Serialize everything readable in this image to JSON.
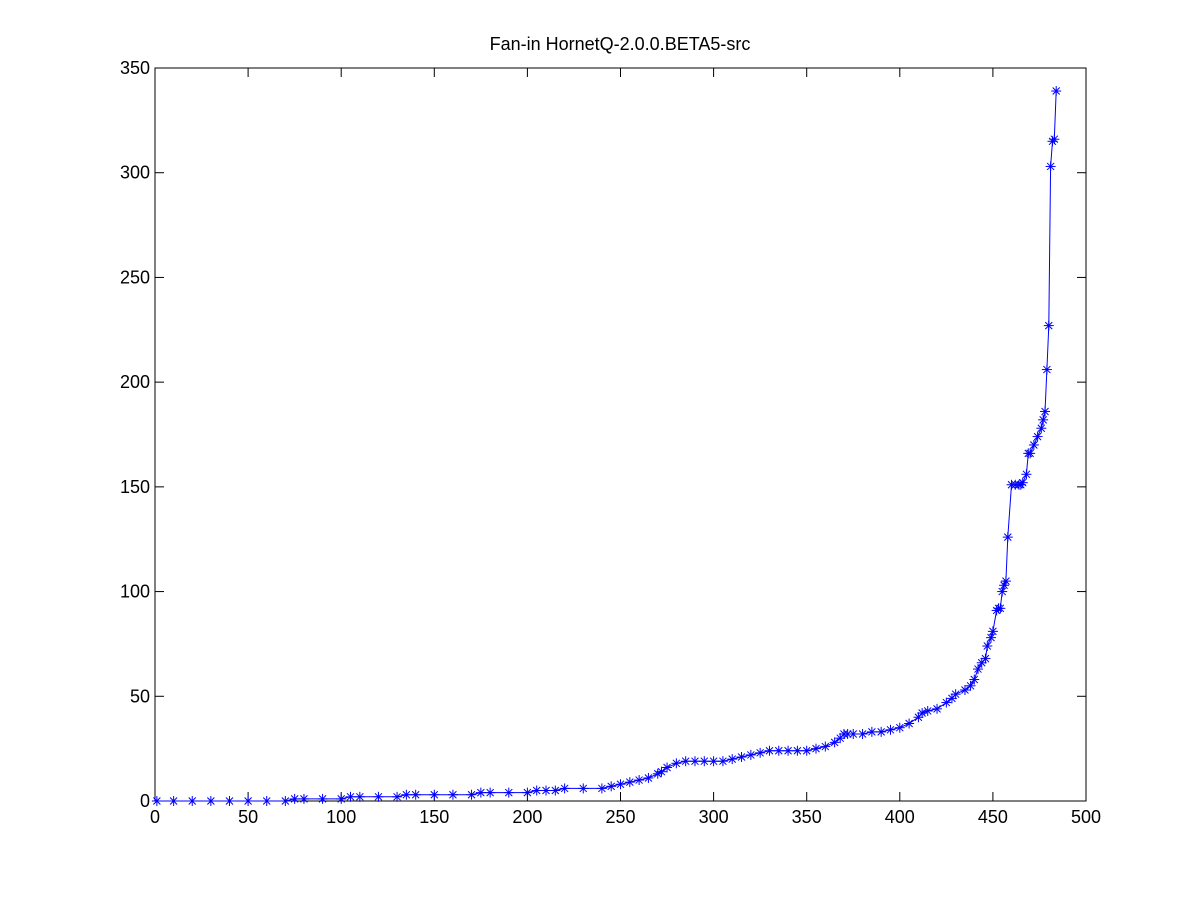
{
  "chart_data": {
    "type": "line",
    "title": "Fan-in HornetQ-2.0.0.BETA5-src",
    "xlabel": "",
    "ylabel": "",
    "xlim": [
      0,
      500
    ],
    "ylim": [
      0,
      350
    ],
    "xticks": [
      0,
      50,
      100,
      150,
      200,
      250,
      300,
      350,
      400,
      450,
      500
    ],
    "yticks": [
      0,
      50,
      100,
      150,
      200,
      250,
      300,
      350
    ],
    "grid": false,
    "marker": "asterisk",
    "line_color": "#0000ff",
    "series": [
      {
        "x": [
          1,
          10,
          20,
          30,
          40,
          50,
          60,
          70,
          75,
          80,
          90,
          100,
          105,
          110,
          120,
          130,
          135,
          140,
          150,
          160,
          170,
          175,
          180,
          190,
          200,
          205,
          210,
          215,
          220,
          230,
          240,
          245,
          250,
          255,
          260,
          265,
          270,
          272,
          275,
          280,
          285,
          290,
          295,
          300,
          305,
          310,
          315,
          320,
          325,
          330,
          335,
          340,
          345,
          350,
          355,
          360,
          365,
          368,
          370,
          372,
          375,
          380,
          385,
          390,
          395,
          400,
          405,
          410,
          412,
          415,
          420,
          425,
          428,
          430,
          435,
          438,
          440,
          442,
          444,
          446,
          447,
          449,
          450,
          452,
          453,
          454,
          455,
          456,
          457,
          458,
          460,
          462,
          464,
          465,
          466,
          468,
          469,
          470,
          472,
          474,
          476,
          477,
          478,
          479,
          480,
          481,
          482,
          483,
          484
        ],
        "y": [
          0,
          0,
          0,
          0,
          0,
          0,
          0,
          0,
          1,
          1,
          1,
          1,
          2,
          2,
          2,
          2,
          3,
          3,
          3,
          3,
          3,
          4,
          4,
          4,
          4,
          5,
          5,
          5,
          6,
          6,
          6,
          7,
          8,
          9,
          10,
          11,
          13,
          14,
          16,
          18,
          19,
          19,
          19,
          19,
          19,
          20,
          21,
          22,
          23,
          24,
          24,
          24,
          24,
          24,
          25,
          26,
          28,
          30,
          32,
          32,
          32,
          32,
          33,
          33,
          34,
          35,
          37,
          40,
          42,
          43,
          44,
          47,
          49,
          51,
          53,
          55,
          58,
          63,
          66,
          68,
          74,
          78,
          81,
          91,
          92,
          92,
          100,
          103,
          105,
          126,
          151,
          151,
          151,
          151,
          152,
          156,
          166,
          166,
          170,
          174,
          178,
          182,
          186,
          206,
          227,
          303,
          315,
          316,
          339
        ]
      }
    ]
  }
}
